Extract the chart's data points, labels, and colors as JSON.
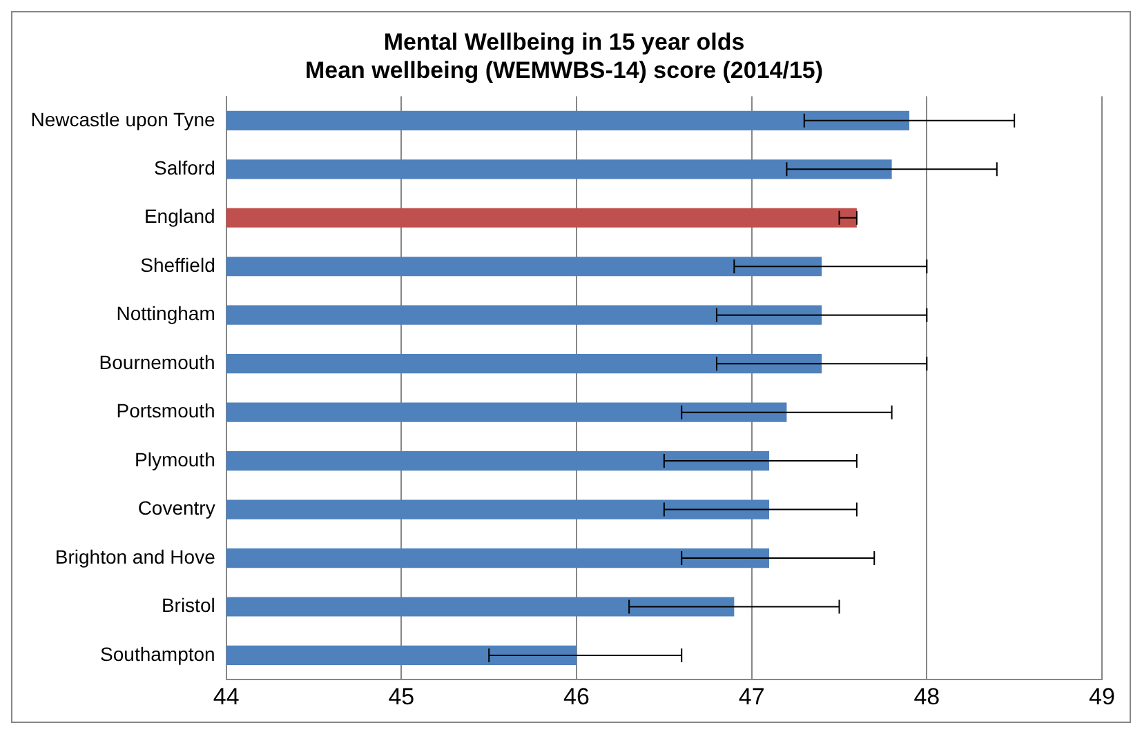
{
  "chart_data": {
    "type": "bar",
    "orientation": "horizontal",
    "title": "Mental Wellbeing in 15 year olds\nMean wellbeing (WEMWBS-14) score (2014/15)",
    "categories": [
      "Newcastle upon Tyne",
      "Salford",
      "England",
      "Sheffield",
      "Nottingham",
      "Bournemouth",
      "Portsmouth",
      "Plymouth",
      "Coventry",
      "Brighton and Hove",
      "Bristol",
      "Southampton"
    ],
    "values": [
      47.9,
      47.8,
      47.6,
      47.4,
      47.4,
      47.4,
      47.2,
      47.1,
      47.1,
      47.1,
      46.9,
      46.0
    ],
    "errors": [
      [
        47.3,
        48.5
      ],
      [
        47.2,
        48.4
      ],
      [
        47.5,
        47.6
      ],
      [
        46.9,
        48.0
      ],
      [
        46.8,
        48.0
      ],
      [
        46.8,
        48.0
      ],
      [
        46.6,
        47.8
      ],
      [
        46.5,
        47.6
      ],
      [
        46.5,
        47.6
      ],
      [
        46.6,
        47.7
      ],
      [
        46.3,
        47.5
      ],
      [
        45.5,
        46.6
      ]
    ],
    "colors": [
      "#4f81bd",
      "#4f81bd",
      "#c0504d",
      "#4f81bd",
      "#4f81bd",
      "#4f81bd",
      "#4f81bd",
      "#4f81bd",
      "#4f81bd",
      "#4f81bd",
      "#4f81bd",
      "#4f81bd"
    ],
    "xlim": [
      44,
      49
    ],
    "xticks": [
      44,
      45,
      46,
      47,
      48,
      49
    ],
    "grid": "x"
  }
}
